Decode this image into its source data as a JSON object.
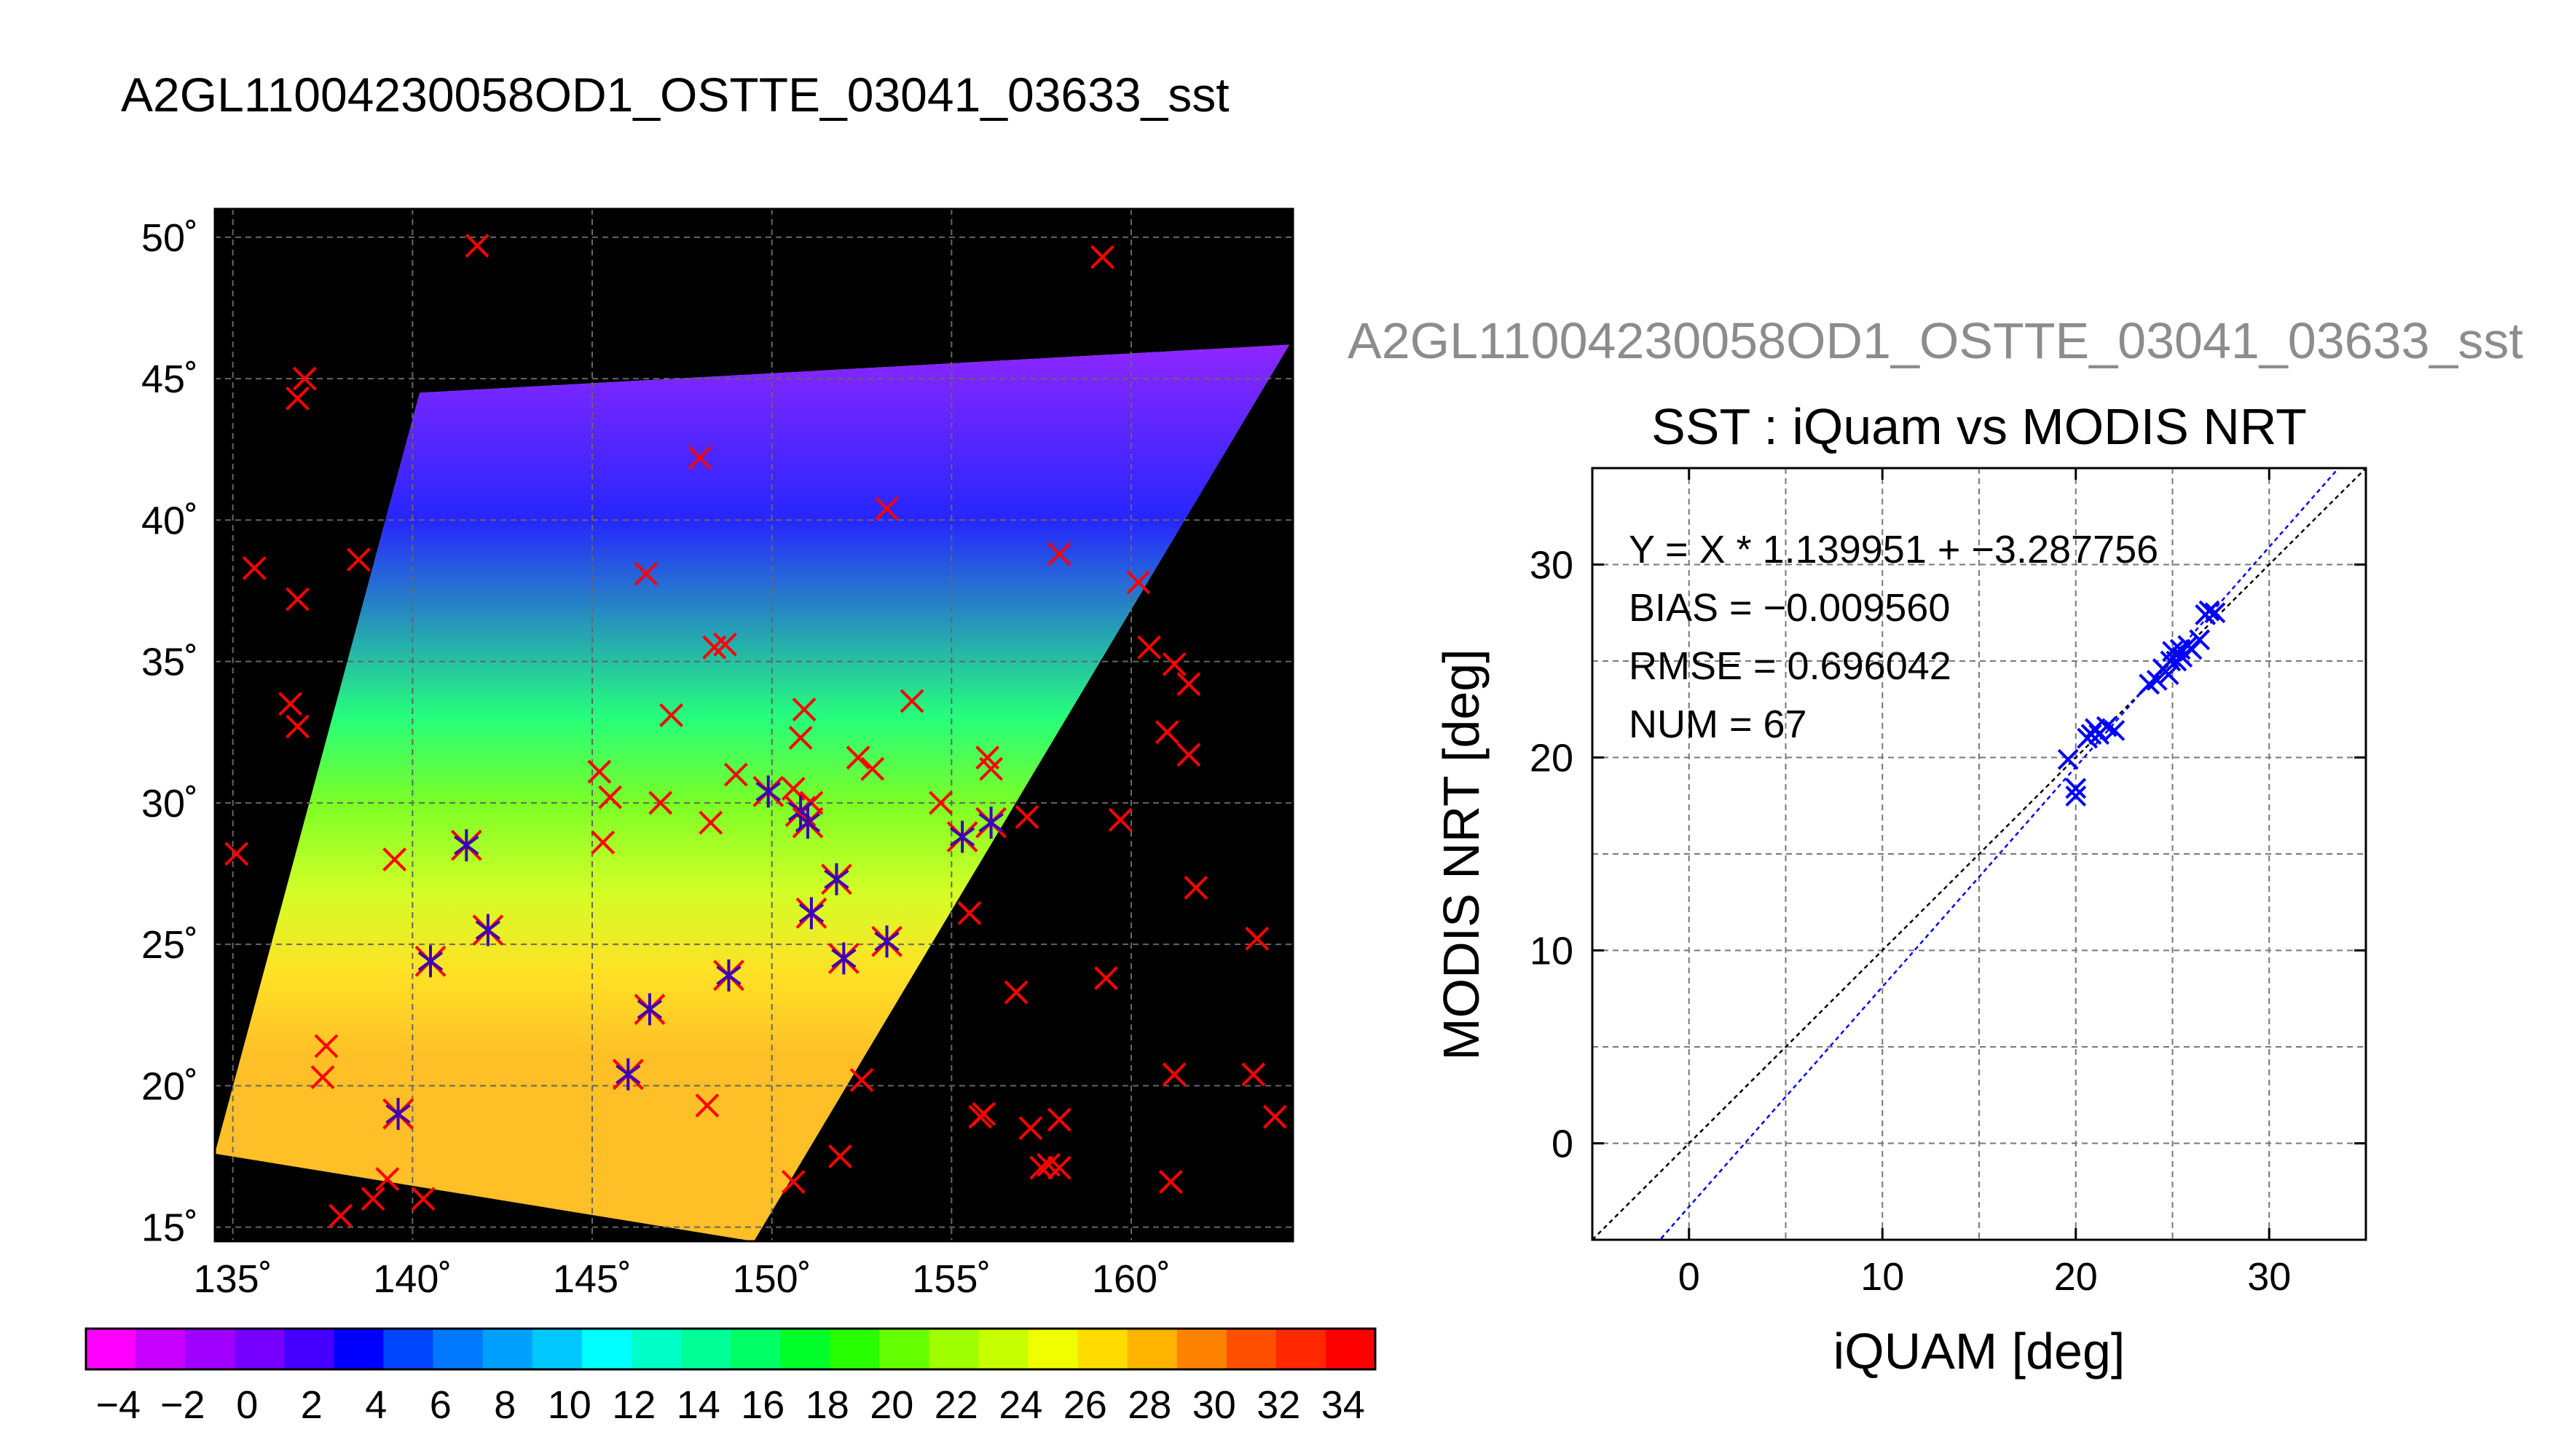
{
  "figure_title": "A2GL11004230058OD1_OSTTE_03041_03633_sst",
  "chart_data": [
    {
      "type": "map",
      "title": "A2GL11004230058OD1_OSTTE_03041_03633_sst",
      "xlim": [
        134.5,
        164.5
      ],
      "ylim": [
        14.5,
        51
      ],
      "x_ticks": [
        135,
        140,
        145,
        150,
        155,
        160
      ],
      "x_tick_labels": [
        "135˚",
        "140˚",
        "145˚",
        "150˚",
        "155˚",
        "160˚"
      ],
      "y_ticks": [
        15,
        20,
        25,
        30,
        35,
        40,
        45,
        50
      ],
      "y_tick_labels": [
        "15˚",
        "20˚",
        "25˚",
        "30˚",
        "35˚",
        "40˚",
        "45˚",
        "50˚"
      ],
      "grid": true,
      "swath": {
        "corners": [
          [
            140.2,
            44.5
          ],
          [
            164.4,
            46.2
          ],
          [
            149.5,
            14.5
          ],
          [
            134.5,
            17.6
          ]
        ],
        "sst_by_latitude": [
          [
            46,
            0
          ],
          [
            40,
            4
          ],
          [
            33,
            16
          ],
          [
            30,
            20
          ],
          [
            27,
            24
          ],
          [
            24,
            26
          ],
          [
            21,
            27.5
          ],
          [
            18,
            28.5
          ]
        ]
      },
      "iquam_points": [
        [
          135.1,
          28.2
        ],
        [
          137.0,
          45.0
        ],
        [
          136.8,
          44.3
        ],
        [
          138.5,
          38.6
        ],
        [
          135.6,
          38.3
        ],
        [
          136.8,
          37.2
        ],
        [
          136.6,
          33.5
        ],
        [
          136.8,
          32.7
        ],
        [
          141.8,
          49.7
        ],
        [
          159.2,
          49.3
        ],
        [
          148.0,
          42.2
        ],
        [
          153.2,
          40.4
        ],
        [
          146.5,
          38.1
        ],
        [
          158.0,
          38.8
        ],
        [
          160.2,
          37.8
        ],
        [
          148.4,
          35.5
        ],
        [
          148.7,
          35.6
        ],
        [
          147.2,
          33.1
        ],
        [
          153.9,
          33.6
        ],
        [
          150.9,
          33.3
        ],
        [
          150.8,
          32.3
        ],
        [
          156.0,
          31.6
        ],
        [
          156.1,
          31.2
        ],
        [
          152.4,
          31.6
        ],
        [
          152.8,
          31.2
        ],
        [
          145.2,
          31.1
        ],
        [
          145.5,
          30.2
        ],
        [
          146.9,
          30.0
        ],
        [
          148.3,
          29.3
        ],
        [
          149.0,
          31.0
        ],
        [
          150.6,
          30.5
        ],
        [
          151.1,
          30.0
        ],
        [
          154.7,
          30.0
        ],
        [
          145.3,
          28.6
        ],
        [
          139.5,
          28.0
        ],
        [
          157.1,
          29.5
        ],
        [
          159.7,
          29.4
        ],
        [
          160.5,
          35.5
        ],
        [
          161.2,
          34.9
        ],
        [
          161.6,
          34.2
        ],
        [
          161.0,
          32.5
        ],
        [
          161.6,
          31.7
        ],
        [
          161.8,
          27.0
        ],
        [
          155.5,
          26.1
        ],
        [
          156.8,
          23.3
        ],
        [
          159.3,
          23.8
        ],
        [
          163.5,
          25.2
        ],
        [
          137.6,
          21.4
        ],
        [
          137.5,
          20.3
        ],
        [
          138.0,
          15.4
        ],
        [
          138.9,
          16.0
        ],
        [
          139.3,
          16.7
        ],
        [
          140.3,
          16.0
        ],
        [
          148.2,
          19.3
        ],
        [
          150.6,
          16.6
        ],
        [
          151.9,
          17.5
        ],
        [
          152.5,
          20.2
        ],
        [
          155.9,
          19.0
        ],
        [
          155.8,
          18.9
        ],
        [
          157.2,
          18.5
        ],
        [
          158.0,
          18.8
        ],
        [
          157.5,
          17.1
        ],
        [
          157.7,
          17.2
        ],
        [
          158.0,
          17.1
        ],
        [
          161.1,
          16.6
        ],
        [
          161.2,
          20.4
        ],
        [
          163.4,
          20.4
        ],
        [
          164.0,
          18.9
        ]
      ],
      "collocated_points": [
        [
          141.5,
          28.5
        ],
        [
          142.1,
          25.5
        ],
        [
          140.5,
          24.4
        ],
        [
          139.6,
          19.0
        ],
        [
          146.0,
          20.4
        ],
        [
          146.6,
          22.7
        ],
        [
          148.8,
          23.9
        ],
        [
          149.9,
          30.4
        ],
        [
          150.8,
          29.7
        ],
        [
          151.0,
          29.3
        ],
        [
          151.1,
          26.1
        ],
        [
          151.8,
          27.3
        ],
        [
          152.0,
          24.5
        ],
        [
          153.2,
          25.1
        ],
        [
          155.3,
          28.8
        ],
        [
          156.1,
          29.3
        ]
      ],
      "colorbar": {
        "ticks": [
          -4,
          -2,
          0,
          2,
          4,
          6,
          8,
          10,
          12,
          14,
          16,
          18,
          20,
          22,
          24,
          26,
          28,
          30,
          32,
          34
        ],
        "tick_labels": [
          "−4",
          "−2",
          "0",
          "2",
          "4",
          "6",
          "8",
          "10",
          "12",
          "14",
          "16",
          "18",
          "20",
          "22",
          "24",
          "26",
          "28",
          "30",
          "32",
          "34"
        ],
        "range": [
          -5,
          35
        ],
        "colors": [
          "#ff00ff",
          "#c800ff",
          "#a000ff",
          "#7800ff",
          "#4600ff",
          "#0000ff",
          "#0046ff",
          "#0078ff",
          "#00a0ff",
          "#00c8ff",
          "#00ffff",
          "#00ffc8",
          "#00ff96",
          "#00ff64",
          "#00ff28",
          "#28ff00",
          "#64ff00",
          "#a0ff00",
          "#c8ff00",
          "#f0ff00",
          "#ffdc00",
          "#ffb400",
          "#ff8200",
          "#ff5000",
          "#ff2800",
          "#ff0000"
        ]
      }
    },
    {
      "type": "scatter",
      "panel_title": "A2GL11004230058OD1_OSTTE_03041_03633_sst",
      "title": "SST : iQuam vs MODIS NRT",
      "xlabel": "iQUAM [deg]",
      "ylabel": "MODIS NRT [deg]",
      "xlim": [
        -5,
        35
      ],
      "ylim": [
        -5,
        35
      ],
      "x_ticks": [
        0,
        10,
        20,
        30
      ],
      "y_ticks": [
        0,
        10,
        20,
        30
      ],
      "grid": true,
      "stats": [
        "Y = X * 1.139951 + −3.287756",
        "BIAS = −0.009560",
        "RMSE = 0.696042",
        "NUM = 67"
      ],
      "fit": {
        "slope": 1.139951,
        "intercept": -3.287756
      },
      "points": [
        [
          19.6,
          19.9
        ],
        [
          20.0,
          18.4
        ],
        [
          20.0,
          18.0
        ],
        [
          20.6,
          21.0
        ],
        [
          20.8,
          21.2
        ],
        [
          21.0,
          21.5
        ],
        [
          21.2,
          21.2
        ],
        [
          21.6,
          21.6
        ],
        [
          22.0,
          21.4
        ],
        [
          23.8,
          23.8
        ],
        [
          24.2,
          24.0
        ],
        [
          24.5,
          24.6
        ],
        [
          24.8,
          24.3
        ],
        [
          24.9,
          25.0
        ],
        [
          25.0,
          25.5
        ],
        [
          25.2,
          25.0
        ],
        [
          25.4,
          25.6
        ],
        [
          25.5,
          25.2
        ],
        [
          25.8,
          25.8
        ],
        [
          26.0,
          25.6
        ],
        [
          26.4,
          26.1
        ],
        [
          26.7,
          27.4
        ],
        [
          26.9,
          27.6
        ],
        [
          27.2,
          27.5
        ]
      ]
    }
  ]
}
